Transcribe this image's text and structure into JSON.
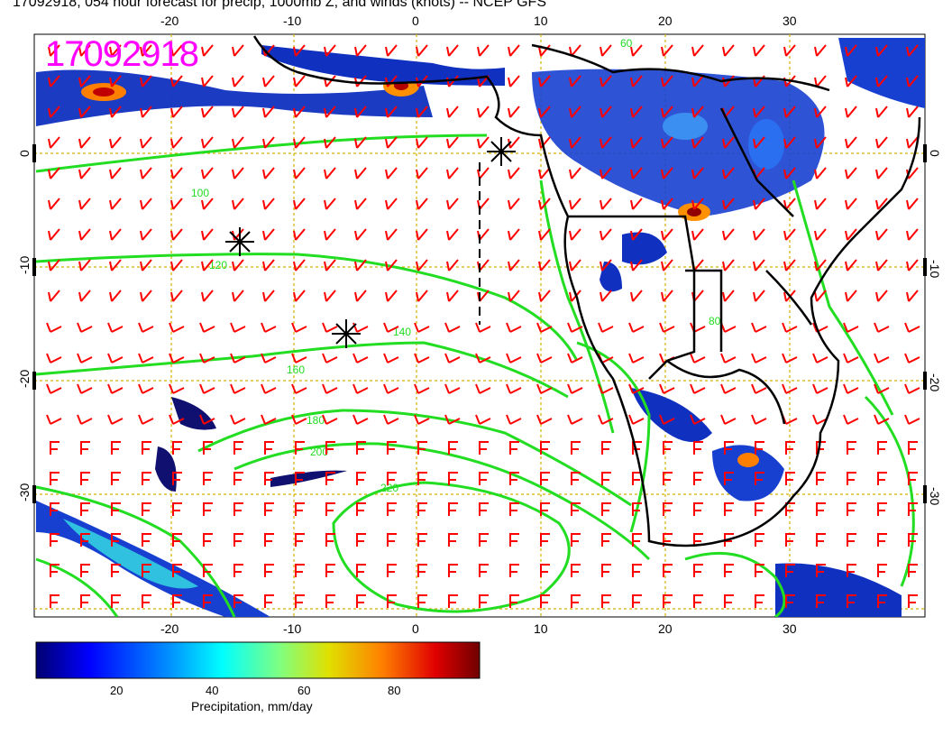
{
  "title": "17092918, 054 hour forecast for precip, 1000mb Z, and winds (knots) -- NCEP GFS",
  "stamp": "17092918",
  "lon_ticks": [
    "-20",
    "-10",
    "0",
    "10",
    "20",
    "30"
  ],
  "lat_ticks": [
    "0",
    "-10",
    "-20",
    "-30"
  ],
  "contour_labels": [
    "100",
    "120",
    "140",
    "160",
    "180",
    "200",
    "220",
    "60",
    "80"
  ],
  "colorbar": {
    "title": "Precipitation, mm/day",
    "ticks": [
      "20",
      "40",
      "60",
      "80"
    ],
    "colors": [
      "#000080",
      "#0000ff",
      "#0080ff",
      "#00ffff",
      "#80ff80",
      "#ffff00",
      "#ff8000",
      "#ff0000",
      "#800000"
    ]
  },
  "markers": [
    "asterisk",
    "asterisk",
    "asterisk"
  ],
  "colors": {
    "contours": "#22dd22",
    "wind_barbs": "#ff0000",
    "coastline": "#000000",
    "grid": "#d4b000"
  }
}
